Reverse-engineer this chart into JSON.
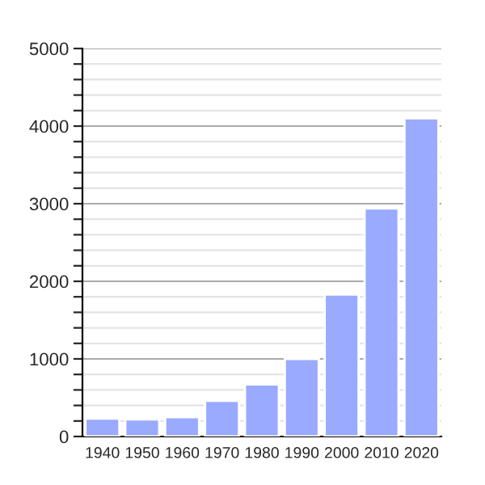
{
  "chart_data": {
    "type": "bar",
    "categories": [
      "1940",
      "1950",
      "1960",
      "1970",
      "1980",
      "1990",
      "2000",
      "2010",
      "2020"
    ],
    "values": [
      230,
      220,
      250,
      460,
      670,
      1000,
      1830,
      2940,
      4100
    ],
    "color": "#99aaff",
    "ylim": [
      0,
      5000
    ],
    "yticks": [
      0,
      {
        "value": 200,
        "label": null
      },
      {
        "value": 400,
        "label": null
      },
      {
        "value": 600,
        "label": null
      },
      {
        "value": 800,
        "label": null
      },
      1000,
      {
        "value": 1200,
        "label": null
      },
      {
        "value": 1400,
        "label": null
      },
      {
        "value": 1600,
        "label": null
      },
      {
        "value": 1800,
        "label": null
      },
      2000,
      {
        "value": 2200,
        "label": null
      },
      {
        "value": 2400,
        "label": null
      },
      {
        "value": 2600,
        "label": null
      },
      {
        "value": 2800,
        "label": null
      },
      3000,
      {
        "value": 3200,
        "label": null
      },
      {
        "value": 3400,
        "label": null
      },
      {
        "value": 3600,
        "label": null
      },
      {
        "value": 3800,
        "label": null
      },
      4000,
      {
        "value": 4200,
        "label": null
      },
      {
        "value": 4400,
        "label": null
      },
      {
        "value": 4600,
        "label": null
      },
      {
        "value": 4800,
        "label": null
      },
      5000
    ],
    "grid": "y"
  }
}
